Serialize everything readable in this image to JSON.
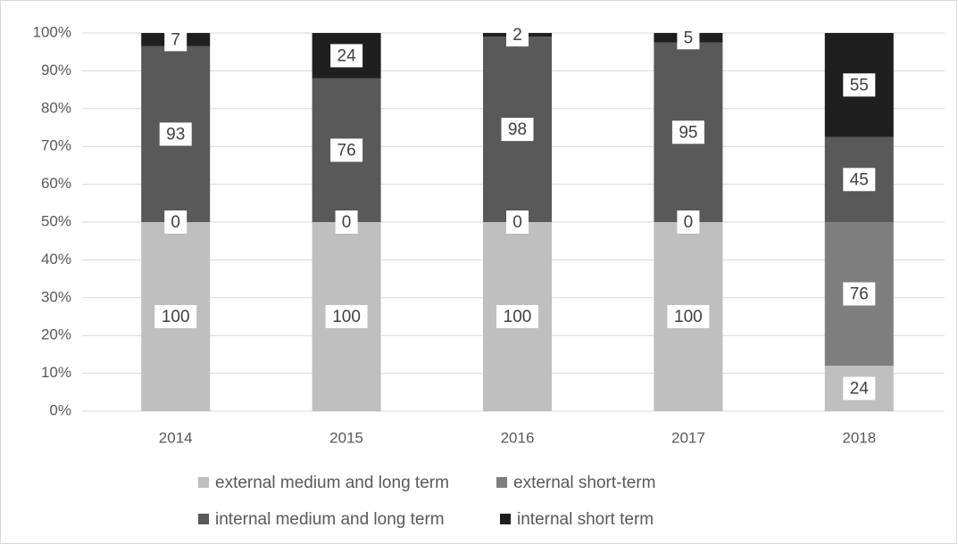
{
  "chart_data": {
    "type": "bar",
    "stacking": "percent",
    "categories": [
      "2014",
      "2015",
      "2016",
      "2017",
      "2018"
    ],
    "series": [
      {
        "name": "external medium and long term",
        "color": "#bfbfbf",
        "values": [
          100,
          100,
          100,
          100,
          24
        ]
      },
      {
        "name": "external short-term",
        "color": "#7f7f7f",
        "values": [
          0,
          0,
          0,
          0,
          76
        ]
      },
      {
        "name": "internal medium and long term",
        "color": "#595959",
        "values": [
          93,
          76,
          98,
          95,
          45
        ]
      },
      {
        "name": "internal short term",
        "color": "#1f1f1f",
        "values": [
          7,
          24,
          2,
          5,
          55
        ]
      }
    ],
    "ylim": [
      0,
      100
    ],
    "yticks": [
      {
        "value": 0,
        "label": "0%"
      },
      {
        "value": 10,
        "label": "10%"
      },
      {
        "value": 20,
        "label": "20%"
      },
      {
        "value": 30,
        "label": "30%"
      },
      {
        "value": 40,
        "label": "40%"
      },
      {
        "value": 50,
        "label": "50%"
      },
      {
        "value": 60,
        "label": "60%"
      },
      {
        "value": 70,
        "label": "70%"
      },
      {
        "value": 80,
        "label": "80%"
      },
      {
        "value": 90,
        "label": "90%"
      },
      {
        "value": 100,
        "label": "100%"
      }
    ],
    "grid": true,
    "legend": "bottom"
  }
}
